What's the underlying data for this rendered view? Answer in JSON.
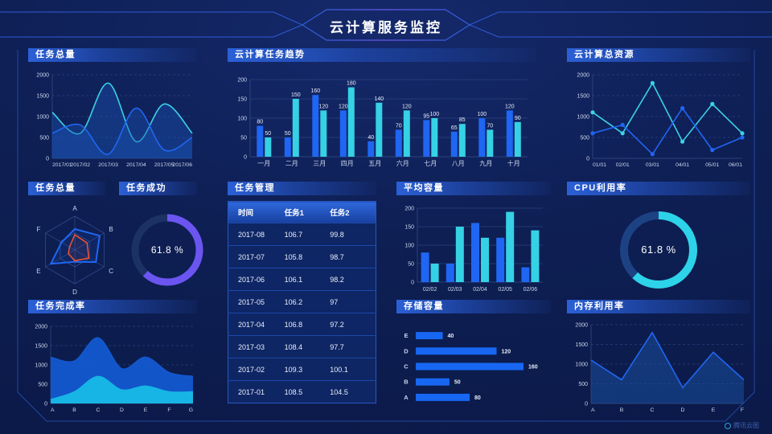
{
  "page": {
    "title": "云计算服务监控",
    "watermark": "腾讯云图"
  },
  "chart_data": [
    {
      "id": "tasks_total_line",
      "type": "line",
      "title": "任务总量",
      "smooth": true,
      "area": true,
      "markers": false,
      "x": [
        "2017/01",
        "2017/02",
        "2017/03",
        "2017/04",
        "2017/05",
        "2017/06"
      ],
      "series": [
        {
          "color": "#3bd2e5",
          "area_color": "#1b54b4",
          "area_opacity": 0.42,
          "values": [
            1100,
            600,
            1800,
            400,
            1300,
            600
          ]
        },
        {
          "color": "#2066f2",
          "area_color": "#1b54b4",
          "area_opacity": 0.42,
          "values": [
            600,
            800,
            100,
            1200,
            200,
            500
          ]
        }
      ],
      "ylim": [
        0,
        2000
      ],
      "yticks": [
        0,
        500,
        1000,
        1500,
        2000
      ]
    },
    {
      "id": "trend",
      "type": "bar",
      "title": "云计算任务趋势",
      "bar_labels": true,
      "categories": [
        "一月",
        "二月",
        "三月",
        "四月",
        "五月",
        "六月",
        "七月",
        "八月",
        "九月",
        "十月"
      ],
      "series": [
        {
          "color": "#1f66f2",
          "values": [
            80,
            50,
            160,
            120,
            40,
            70,
            95,
            65,
            100,
            120
          ]
        },
        {
          "color": "#35d1e5",
          "values": [
            50,
            150,
            120,
            180,
            140,
            120,
            100,
            85,
            70,
            90
          ]
        }
      ],
      "ylim": [
        0,
        200
      ],
      "yticks": [
        0,
        50,
        100,
        150,
        200
      ]
    },
    {
      "id": "resources",
      "type": "line",
      "title": "云计算总资源",
      "smooth": false,
      "area": false,
      "markers": true,
      "x": [
        "01/01",
        "02/01",
        "03/01",
        "04/01",
        "05/01",
        "06/01"
      ],
      "series": [
        {
          "color": "#3bd2e5",
          "values": [
            1100,
            600,
            1800,
            400,
            1300,
            600
          ]
        },
        {
          "color": "#2066f2",
          "values": [
            600,
            800,
            100,
            1200,
            200,
            500
          ]
        }
      ],
      "ylim": [
        0,
        2000
      ],
      "yticks": [
        0,
        500,
        1000,
        1500,
        2000
      ]
    },
    {
      "id": "tasks_total_radar",
      "type": "radar",
      "title": "任务总量",
      "indicators": [
        "A",
        "B",
        "C",
        "D",
        "E",
        "F"
      ],
      "max": 100,
      "series": [
        {
          "color": "#2066f2",
          "line_width": 2,
          "fill_opacity": 0.12,
          "values": [
            62,
            85,
            72,
            35,
            82,
            45
          ]
        },
        {
          "color": "#f2552b",
          "line_width": 1.5,
          "fill_opacity": 0.08,
          "values": [
            45,
            42,
            48,
            32,
            22,
            18
          ]
        }
      ]
    },
    {
      "id": "tasks_success",
      "type": "donut",
      "title": "任务成功",
      "value": 61.8,
      "label": "61.8 %",
      "arc_color": "#6b55f0",
      "track_color": "#1c3264"
    },
    {
      "id": "task_mgmt",
      "type": "table",
      "title": "任务管理",
      "headers": [
        "时间",
        "任务1",
        "任务2"
      ],
      "rows": [
        [
          "2017-08",
          "106.7",
          "99.8"
        ],
        [
          "2017-07",
          "105.8",
          "98.7"
        ],
        [
          "2017-06",
          "106.1",
          "98.2"
        ],
        [
          "2017-05",
          "106.2",
          "97"
        ],
        [
          "2017-04",
          "106.8",
          "97.2"
        ],
        [
          "2017-03",
          "108.4",
          "97.7"
        ],
        [
          "2017-02",
          "109.3",
          "100.1"
        ],
        [
          "2017-01",
          "108.5",
          "104.5"
        ]
      ]
    },
    {
      "id": "avg_capacity",
      "type": "bar",
      "title": "平均容量",
      "bar_labels": false,
      "categories": [
        "02/02",
        "02/03",
        "02/04",
        "02/05",
        "02/06"
      ],
      "series": [
        {
          "color": "#1f66f2",
          "values": [
            80,
            50,
            160,
            120,
            40
          ]
        },
        {
          "color": "#35d1e5",
          "values": [
            50,
            150,
            120,
            190,
            140
          ]
        }
      ],
      "ylim": [
        0,
        200
      ],
      "yticks": [
        0,
        50,
        100,
        150,
        200
      ]
    },
    {
      "id": "cpu",
      "type": "donut",
      "title": "CPU利用率",
      "value": 61.8,
      "label": "61.8 %",
      "arc_color": "#2dd3e8",
      "track_color": "#1d4284"
    },
    {
      "id": "completion",
      "type": "area",
      "title": "任务完成率",
      "smooth": true,
      "area": true,
      "markers": false,
      "x": [
        "A",
        "B",
        "C",
        "D",
        "E",
        "F",
        "G"
      ],
      "series": [
        {
          "color": "#1358cf",
          "area_color": "#1358cf",
          "area_opacity": 0.95,
          "values": [
            1200,
            1100,
            1700,
            900,
            1200,
            800,
            700
          ]
        },
        {
          "color": "#17b5e5",
          "area_color": "#17b5e5",
          "area_opacity": 1,
          "values": [
            100,
            300,
            700,
            350,
            450,
            300,
            300
          ]
        }
      ],
      "ylim": [
        0,
        2000
      ],
      "yticks": [
        0,
        500,
        1000,
        1500,
        2000
      ]
    },
    {
      "id": "storage",
      "type": "hbar",
      "title": "存储容量",
      "value_labels": true,
      "color": "#1767f2",
      "categories": [
        "E",
        "D",
        "C",
        "B",
        "A"
      ],
      "values": [
        40,
        120,
        160,
        50,
        80
      ]
    },
    {
      "id": "memory",
      "type": "line",
      "title": "内存利用率",
      "smooth": false,
      "area": true,
      "markers": false,
      "x": [
        "A",
        "B",
        "C",
        "D",
        "E",
        "F"
      ],
      "series": [
        {
          "color": "#2066f2",
          "area_color": "#1a4e9e",
          "area_opacity": 0.55,
          "values": [
            1100,
            600,
            1800,
            400,
            1300,
            600
          ]
        }
      ],
      "ylim": [
        0,
        2000
      ],
      "yticks": [
        0,
        500,
        1000,
        1500,
        2000
      ]
    }
  ]
}
